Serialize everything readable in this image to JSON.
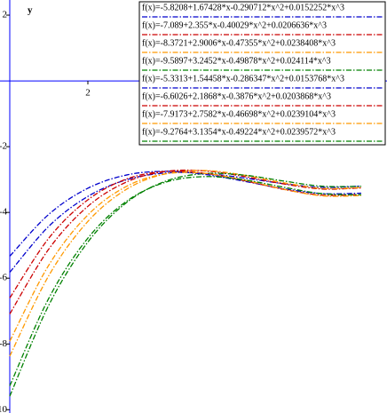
{
  "chart_data": {
    "type": "line",
    "y_label": "y",
    "x": [
      0,
      1,
      2,
      3,
      4,
      5,
      6,
      7,
      8,
      9
    ],
    "xlim": [
      -0.25,
      9.66
    ],
    "ylim": [
      -10.1,
      2.46
    ],
    "xticks": [
      2
    ],
    "yticks": [
      2,
      -2,
      -4,
      -6,
      -8,
      -10
    ],
    "series": [
      {
        "name": "f(x)=-5.8208+1.67428*x-0.290712*x^2+0.0152252*x^3",
        "color": "#0000cc",
        "values": [
          -5.8208,
          -4.422,
          -3.5133,
          -3.0033,
          -2.8007,
          -2.8141,
          -2.9521,
          -3.1235,
          -3.2368,
          -3.2008
        ]
      },
      {
        "name": "f(x)=-7.089+2.355*x-0.40029*x^2+0.0206636*x^3",
        "color": "#cc0000",
        "values": [
          -7.089,
          -5.1136,
          -3.8149,
          -3.0687,
          -2.7512,
          -2.7383,
          -2.9061,
          -3.1306,
          -3.2878,
          -3.2537
        ]
      },
      {
        "name": "f(x)=-8.3721+2.9006*x-0.47355*x^2+0.0238408*x^3",
        "color": "#ff9900",
        "values": [
          -8.3721,
          -5.9212,
          -4.2744,
          -3.2886,
          -2.8207,
          -2.7278,
          -2.8667,
          -3.0945,
          -3.268,
          -3.2443
        ]
      },
      {
        "name": "f(x)=-9.5897+3.2452*x-0.49878*x^2+0.024114*x^3",
        "color": "#008000",
        "values": [
          -9.5897,
          -6.8192,
          -4.9015,
          -3.692,
          -3.0461,
          -2.819,
          -2.866,
          -3.0424,
          -3.2037,
          -3.205
        ]
      },
      {
        "name": "f(x)=-5.3313+1.54458*x-0.286347*x^2+0.0153768*x^3",
        "color": "#0000cc",
        "values": [
          -5.3313,
          -4.0577,
          -3.2645,
          -2.8595,
          -2.7504,
          -2.845,
          -3.0509,
          -3.276,
          -3.4279,
          -3.4145
        ]
      },
      {
        "name": "f(x)=-6.6026+2.1868*x-0.3876*x^2+0.0203868*x^3",
        "color": "#cc0000",
        "values": [
          -6.6026,
          -4.783,
          -3.6163,
          -2.9802,
          -2.7522,
          -2.8103,
          -3.0319,
          -3.2947,
          -3.4766,
          -3.455
        ]
      },
      {
        "name": "f(x)=-7.9173+2.7582*x-0.46698*x^2+0.0239104*x^3",
        "color": "#ff9900",
        "values": [
          -7.9173,
          -5.6022,
          -4.0775,
          -3.1999,
          -2.8259,
          -2.812,
          -3.0147,
          -3.2907,
          -3.4963,
          -3.4882
        ]
      },
      {
        "name": "f(x)=-9.2764+3.1354*x-0.49224*x^2+0.0239572*x^3",
        "color": "#008000",
        "values": [
          -9.2764,
          -6.6093,
          -4.7829,
          -3.6535,
          -3.0774,
          -2.9108,
          -3.0099,
          -3.231,
          -3.4305,
          -3.4644
        ]
      }
    ]
  }
}
